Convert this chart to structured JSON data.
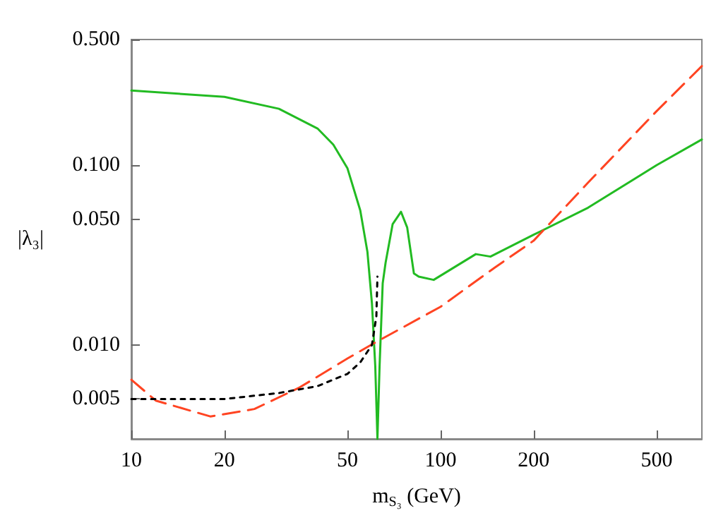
{
  "chart_data": {
    "type": "line",
    "xlabel": "m$_{S₃}$ (GeV)",
    "ylabel": "|λ₃|",
    "log": "xy",
    "grid": false,
    "marker": "none",
    "xlim": [
      10,
      700
    ],
    "xticks": [
      10,
      20,
      50,
      100,
      200,
      500
    ],
    "ylim": [
      0.003,
      0.5
    ],
    "yticks": [
      {
        "value": 0.005,
        "label": "0.005"
      },
      {
        "value": 0.01,
        "label": "0.010"
      },
      {
        "value": 0.05,
        "label": "0.050"
      },
      {
        "value": 0.1,
        "label": "0.100"
      },
      {
        "value": 0.5,
        "label": "0.500"
      }
    ],
    "series": [
      {
        "color": "#22bb22",
        "line_style": "solid",
        "x": [
          10,
          20,
          30,
          40,
          45,
          50,
          55,
          58,
          60,
          61.5,
          62.5,
          63.5,
          65,
          66.4,
          70,
          74.5,
          78,
          82,
          85,
          95,
          130,
          145,
          200,
          300,
          500,
          700
        ],
        "values": [
          0.26,
          0.24,
          0.206,
          0.16,
          0.13,
          0.096,
          0.056,
          0.033,
          0.017,
          0.0076,
          0.003,
          0.0076,
          0.022,
          0.0286,
          0.047,
          0.055,
          0.045,
          0.025,
          0.024,
          0.023,
          0.032,
          0.031,
          0.041,
          0.058,
          0.1,
          0.139
        ]
      },
      {
        "color": "#ff4422",
        "line_style": "dashed",
        "x": [
          10,
          12,
          18,
          25,
          35,
          50,
          62,
          100,
          150,
          200,
          300,
          500,
          700
        ],
        "values": [
          0.0064,
          0.0049,
          0.004,
          0.0044,
          0.0058,
          0.0084,
          0.0104,
          0.0163,
          0.027,
          0.038,
          0.08,
          0.2,
          0.356
        ]
      },
      {
        "color": "#000000",
        "line_style": "dotted",
        "x": [
          10,
          20,
          30,
          40,
          50,
          55,
          60,
          62,
          62.5
        ],
        "values": [
          0.005,
          0.005,
          0.0054,
          0.0059,
          0.0069,
          0.008,
          0.01,
          0.0144,
          0.024
        ]
      }
    ]
  }
}
